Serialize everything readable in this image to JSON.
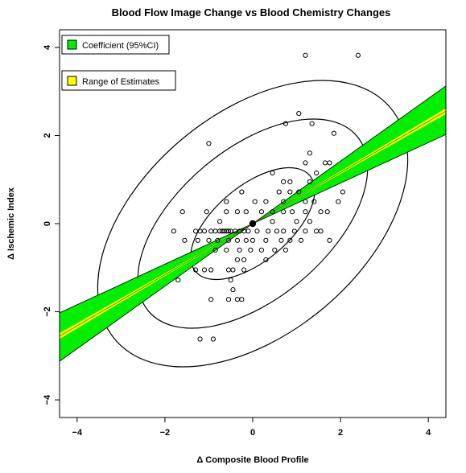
{
  "chart_data": {
    "type": "scatter",
    "title": "Blood Flow Image Change vs Blood Chemistry Changes",
    "xlabel": "Δ Composite Blood Profile",
    "ylabel": "Δ Ischemic Index",
    "xlim": [
      -4.4,
      4.4
    ],
    "ylim": [
      -4.4,
      4.4
    ],
    "x_ticks": [
      -4,
      -2,
      0,
      2,
      4
    ],
    "y_ticks": [
      -4,
      -2,
      0,
      2,
      4
    ],
    "x_tick_labels": [
      "−4",
      "−2",
      "0",
      "2",
      "4"
    ],
    "y_tick_labels": [
      "−4",
      "−2",
      "0",
      "2",
      "4"
    ],
    "grid": false,
    "legend_position": "top-left",
    "legend": [
      {
        "label": "Coefficient (95%CI)",
        "color": "#00ee00"
      },
      {
        "label": "Range of Estimates",
        "color": "#ffff00"
      }
    ],
    "regression": {
      "slope": 0.58,
      "slope_ci_low": 0.46,
      "slope_ci_high": 0.71,
      "range_low": 0.565,
      "range_high": 0.595
    },
    "center_point": [
      0,
      0
    ],
    "ellipses": [
      {
        "center": [
          0,
          0
        ],
        "radius_major": 1.7,
        "radius_minor": 0.85,
        "angle_deg": 40
      },
      {
        "center": [
          0,
          0
        ],
        "radius_major": 3.1,
        "radius_minor": 1.7,
        "angle_deg": 40
      },
      {
        "center": [
          0,
          0
        ],
        "radius_major": 4.1,
        "radius_minor": 2.5,
        "angle_deg": 40
      }
    ],
    "points": [
      [
        1.2,
        3.82
      ],
      [
        2.4,
        3.82
      ],
      [
        -1.0,
        1.82
      ],
      [
        1.05,
        2.5
      ],
      [
        0.75,
        2.27
      ],
      [
        1.35,
        2.27
      ],
      [
        1.85,
        2.05
      ],
      [
        1.3,
        1.6
      ],
      [
        1.65,
        1.38
      ],
      [
        1.75,
        1.38
      ],
      [
        1.2,
        1.38
      ],
      [
        1.45,
        1.15
      ],
      [
        0.45,
        1.15
      ],
      [
        0.7,
        0.95
      ],
      [
        0.85,
        0.95
      ],
      [
        1.3,
        0.95
      ],
      [
        1.05,
        0.72
      ],
      [
        2.05,
        0.72
      ],
      [
        1.4,
        0.5
      ],
      [
        1.95,
        0.5
      ],
      [
        -0.6,
        0.5
      ],
      [
        0.05,
        0.5
      ],
      [
        0.3,
        0.5
      ],
      [
        0.7,
        0.5
      ],
      [
        1.2,
        0.5
      ],
      [
        0.85,
        0.72
      ],
      [
        -0.25,
        0.72
      ],
      [
        0.6,
        0.72
      ],
      [
        -1.6,
        0.27
      ],
      [
        -1.05,
        0.27
      ],
      [
        -0.6,
        0.27
      ],
      [
        -0.35,
        0.27
      ],
      [
        -0.15,
        0.27
      ],
      [
        0.2,
        0.27
      ],
      [
        0.45,
        0.27
      ],
      [
        0.7,
        0.27
      ],
      [
        0.9,
        0.27
      ],
      [
        1.2,
        0.27
      ],
      [
        1.55,
        0.27
      ],
      [
        1.7,
        0.27
      ],
      [
        -0.75,
        0.05
      ],
      [
        0.45,
        0.05
      ],
      [
        1.0,
        0.05
      ],
      [
        1.3,
        0.05
      ],
      [
        -1.8,
        -0.17
      ],
      [
        -1.3,
        -0.17
      ],
      [
        -1.2,
        -0.17
      ],
      [
        -1.1,
        -0.17
      ],
      [
        -0.95,
        -0.17
      ],
      [
        -0.85,
        -0.17
      ],
      [
        -0.75,
        -0.17
      ],
      [
        -0.7,
        -0.17
      ],
      [
        -0.65,
        -0.17
      ],
      [
        -0.6,
        -0.17
      ],
      [
        -0.55,
        -0.17
      ],
      [
        -0.5,
        -0.17
      ],
      [
        -0.4,
        -0.17
      ],
      [
        -0.3,
        -0.17
      ],
      [
        -0.2,
        -0.17
      ],
      [
        -0.1,
        -0.17
      ],
      [
        0.1,
        -0.17
      ],
      [
        0.35,
        -0.17
      ],
      [
        0.55,
        -0.17
      ],
      [
        0.7,
        -0.17
      ],
      [
        0.95,
        -0.17
      ],
      [
        1.2,
        -0.17
      ],
      [
        1.45,
        -0.17
      ],
      [
        1.55,
        -0.17
      ],
      [
        -1.55,
        -0.38
      ],
      [
        -1.25,
        -0.38
      ],
      [
        -1.0,
        -0.38
      ],
      [
        -0.8,
        -0.38
      ],
      [
        -0.55,
        -0.38
      ],
      [
        -0.35,
        -0.38
      ],
      [
        -0.15,
        -0.38
      ],
      [
        0.0,
        -0.38
      ],
      [
        0.3,
        -0.38
      ],
      [
        0.65,
        -0.38
      ],
      [
        0.85,
        -0.38
      ],
      [
        1.1,
        -0.38
      ],
      [
        1.75,
        -0.38
      ],
      [
        -0.85,
        -0.6
      ],
      [
        -0.6,
        -0.6
      ],
      [
        -0.3,
        -0.6
      ],
      [
        -0.05,
        -0.6
      ],
      [
        0.2,
        -0.6
      ],
      [
        0.5,
        -0.6
      ],
      [
        0.75,
        -0.6
      ],
      [
        -0.35,
        -0.82
      ],
      [
        -0.2,
        -0.82
      ],
      [
        0.3,
        -0.82
      ],
      [
        -1.3,
        -1.05
      ],
      [
        -1.1,
        -1.05
      ],
      [
        -0.95,
        -1.05
      ],
      [
        -0.55,
        -1.05
      ],
      [
        -0.45,
        -1.05
      ],
      [
        -0.2,
        -1.05
      ],
      [
        -1.7,
        -1.28
      ],
      [
        -0.5,
        -1.28
      ],
      [
        -0.45,
        -1.5
      ],
      [
        -0.95,
        -1.72
      ],
      [
        -0.55,
        -1.72
      ],
      [
        -0.35,
        -1.72
      ],
      [
        -0.25,
        -1.72
      ],
      [
        -1.2,
        -2.62
      ],
      [
        -0.9,
        -2.62
      ]
    ]
  }
}
